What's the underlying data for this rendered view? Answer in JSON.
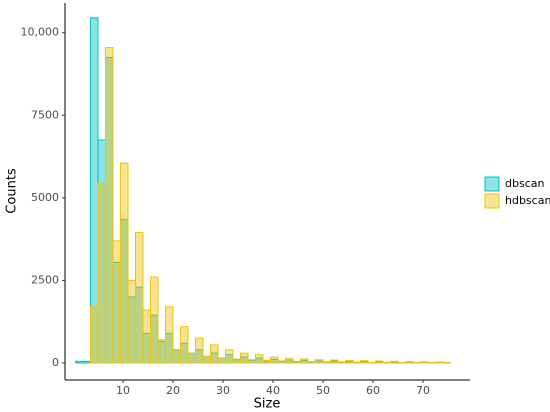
{
  "chart_data": {
    "type": "histogram",
    "x_label": "Size",
    "y_label": "Counts",
    "bins": [
      0.5,
      2,
      3.5,
      5,
      6.5,
      8,
      9.5,
      11,
      12.5,
      14,
      15.5,
      17,
      18.5,
      20,
      21.5,
      23,
      24.5,
      26,
      27.5,
      29,
      30.5,
      32,
      33.5,
      35,
      36.5,
      38,
      39.5,
      41,
      42.5,
      44,
      45.5,
      47,
      48.5,
      50,
      51.5,
      53,
      54.5,
      56,
      57.5,
      59,
      60.5,
      62,
      63.5,
      65,
      66.5,
      68,
      69.5,
      71,
      72.5,
      74,
      75.5
    ],
    "series": [
      {
        "name": "dbscan",
        "color": "#00BFC4",
        "values": [
          50,
          50,
          10450,
          6750,
          9250,
          3050,
          4350,
          2000,
          2300,
          900,
          1450,
          650,
          900,
          400,
          600,
          300,
          400,
          200,
          300,
          150,
          250,
          100,
          180,
          80,
          150,
          60,
          110,
          45,
          90,
          40,
          80,
          30,
          70,
          25,
          60,
          20,
          50,
          20,
          45,
          15,
          40,
          15,
          35,
          10,
          30,
          10,
          25,
          8,
          20,
          8
        ]
      },
      {
        "name": "hdbscan",
        "color": "#F0C20A",
        "values": [
          0,
          0,
          1700,
          5450,
          9550,
          3700,
          6050,
          2500,
          3950,
          1600,
          2600,
          700,
          1700,
          400,
          1100,
          300,
          750,
          200,
          550,
          150,
          400,
          120,
          300,
          100,
          250,
          80,
          180,
          60,
          140,
          50,
          120,
          40,
          100,
          35,
          90,
          30,
          80,
          25,
          70,
          20,
          60,
          20,
          50,
          15,
          40,
          15,
          35,
          10,
          30,
          10
        ]
      }
    ],
    "xlim": [
      -1.6,
      79.4
    ],
    "xticks": [
      10,
      20,
      30,
      40,
      50,
      60,
      70
    ],
    "ylim": [
      -515,
      10900
    ],
    "yticks": [
      0,
      2500,
      5000,
      7500,
      {
        "value": 10000,
        "label": "10,000"
      }
    ],
    "legend": "right"
  }
}
